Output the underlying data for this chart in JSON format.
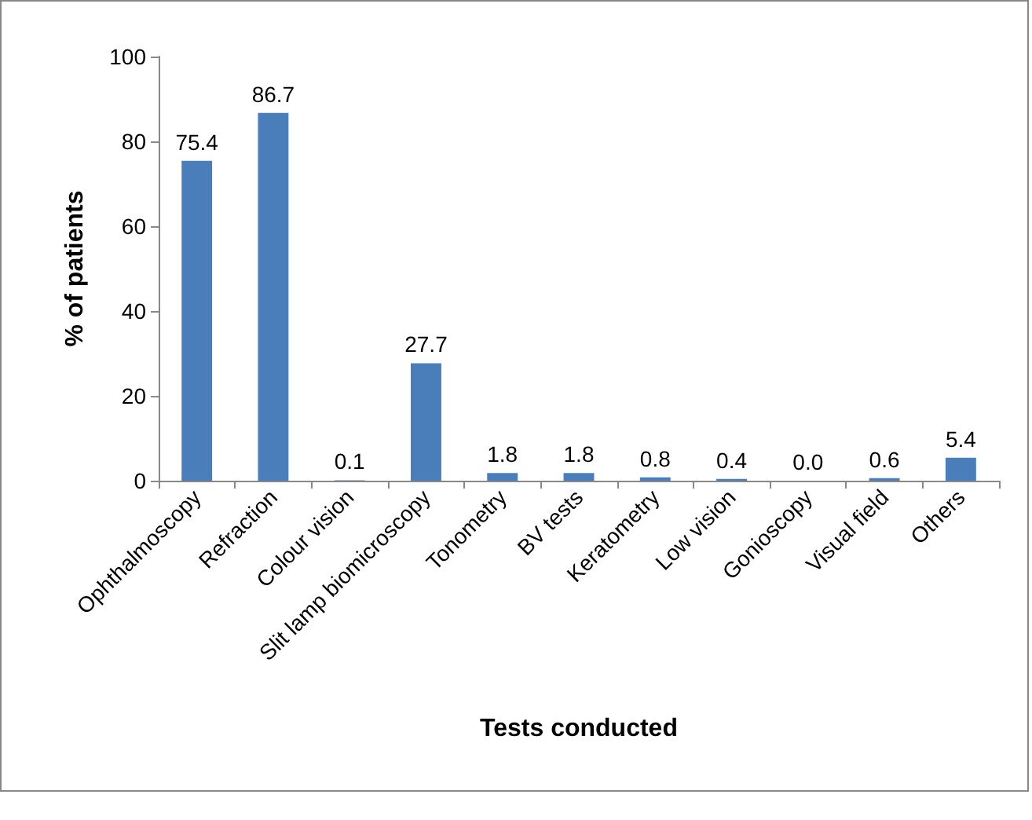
{
  "chart_data": {
    "type": "bar",
    "xlabel": "Tests conducted",
    "ylabel": "% of patients",
    "categories": [
      "Ophthalmoscopy",
      "Refraction",
      "Colour vision",
      "Slit lamp biomicroscopy",
      "Tonometry",
      "BV tests",
      "Keratometry",
      "Low vision",
      "Gonioscopy",
      "Visual field",
      "Others"
    ],
    "values": [
      75.4,
      86.7,
      0.1,
      27.7,
      1.8,
      1.8,
      0.8,
      0.4,
      0.0,
      0.6,
      5.4
    ],
    "value_labels": [
      "75.4",
      "86.7",
      "0.1",
      "27.7",
      "1.8",
      "1.8",
      "0.8",
      "0.4",
      "0.0",
      "0.6",
      "5.4"
    ],
    "color": "#4a7ebb",
    "ylim": [
      0,
      100
    ],
    "yticks": [
      0,
      20,
      40,
      60,
      80,
      100
    ],
    "grid": false
  }
}
